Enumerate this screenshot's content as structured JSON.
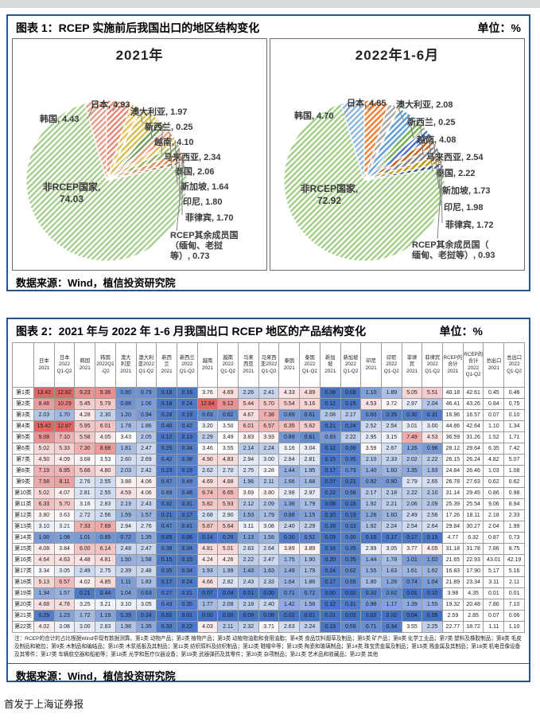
{
  "figure1": {
    "title": "图表 1：RCEP 实施前后我国出口的地区结构变化",
    "unit": "单位：%",
    "source": "数据来源：Wind，植信投资研究院"
  },
  "figure2": {
    "title": "图表 2：2021 年与 2022 年 1-6 月我国出口 RCEP 地区的产品结构变化",
    "unit": "单位：%",
    "source": "数据来源：Wind，植信投资研究院",
    "note": "注：RCEP的合计的占比根据Wind中现有数据测算。第1类 动物产品；第2类 植物产品；第3类 动植物油脂和食用油脂；第4类 食品饮料烟草及制品；第5类 矿产品；第6类 化学工业品；第7类 塑料及橡胶制品；第8类 毛皮及制品和箱包；第9类 木制品和编结品；第10类 木浆纸板及其制品；第11类 纺织原料及纺织制品；第12类 鞋帽伞等；第13类 陶瓷和玻璃制品；第14类 珠宝贵金属及制品；第15类 贱金属及其制品；第16类 机电音像设备及其零件；第17类 车辆航空器和船舶等；第18类 光学和医疗仪器设备；第19类 武器弹药及其零件；第20类 杂项制品；第21类 艺术品和收藏品；第22类 其他"
  },
  "footer": {
    "text": "首发于上海证券报"
  },
  "chart_data": [
    {
      "type": "pie",
      "title": "2021年",
      "labels": [
        "日本",
        "澳大利亚",
        "新西兰",
        "越南",
        "马来西亚",
        "泰国",
        "新加坡",
        "印尼",
        "菲律宾",
        "RCEP其余成员国（缅甸、老挝等）",
        "非RCEP国家",
        "韩国"
      ],
      "values": [
        4.93,
        1.97,
        0.25,
        4.1,
        2.34,
        2.06,
        1.64,
        1.8,
        1.7,
        0.73,
        74.03,
        4.43
      ]
    },
    {
      "type": "pie",
      "title": "2022年1-6月",
      "labels": [
        "日本",
        "澳大利亚",
        "新西兰",
        "越南",
        "马来西亚",
        "泰国",
        "新加坡",
        "印尼",
        "菲律宾",
        "RCEP其余成员国（缅甸、老挝等）",
        "非RCEP国家",
        "韩国"
      ],
      "values": [
        4.85,
        2.08,
        0.25,
        4.08,
        2.54,
        2.22,
        1.73,
        1.98,
        1.72,
        0.93,
        72.92,
        4.7
      ]
    },
    {
      "type": "table",
      "title": "2021 年与 2022 年 1-6 月我国出口 RCEP 地区的产品结构变化",
      "unit": "%",
      "columns": [
        "日本\n2021",
        "日本\n2022\nQ1-Q2",
        "韩国\n2021",
        "韩国\n2022Q1\n-Q2",
        "澳大\n利亚\n2021",
        "澳大利\n亚2022\nQ1-Q2",
        "新西\n兰\n2021",
        "新西兰\n2022\nQ1-Q2",
        "越南\n2021",
        "越南\n2022\nQ1-Q2",
        "马来\n西亚\n2021",
        "马来西\n亚2022\nQ1-Q2",
        "泰国\n2021",
        "泰国\n2022\nQ1-Q2",
        "新加\n坡\n2021",
        "新加坡\n2022\nQ1-Q2",
        "印尼\n2021",
        "印尼\n2022\nQ1-Q2",
        "菲律\n宾\n2021",
        "菲律宾\n2022\nQ1-Q2",
        "RCEP的\n合计\n2021",
        "RCEP的\n合计\n2022\nQ1-Q2",
        "总出口\n2021",
        "总出口\n2022\nQ1-Q2"
      ],
      "rows": [
        {
          "label": "第1类",
          "values": [
            13.42,
            12.82,
            9.23,
            9.36,
            0.8,
            0.79,
            0.18,
            0.16,
            3.76,
            4.69,
            2.26,
            2.41,
            4.33,
            4.89,
            0.06,
            0.08,
            1.1,
            1.89,
            5.05,
            5.51,
            40.18,
            42.61,
            0.45,
            0.46
          ]
        },
        {
          "label": "第2类",
          "values": [
            8.46,
            10.29,
            5.45,
            5.79,
            0.88,
            1.06,
            0.18,
            0.24,
            12.84,
            9.12,
            5.44,
            5.7,
            5.54,
            5.16,
            0.12,
            0.15,
            4.53,
            3.72,
            2.97,
            2.04,
            46.41,
            43.26,
            0.84,
            0.75
          ]
        },
        {
          "label": "第3类",
          "values": [
            2.03,
            1.7,
            4.28,
            2.3,
            1.2,
            0.94,
            0.28,
            0.19,
            0.63,
            0.62,
            4.67,
            7.38,
            0.89,
            0.61,
            2.08,
            2.17,
            0.6,
            0.35,
            0.3,
            0.31,
            16.96,
            16.57,
            0.07,
            0.1
          ]
        },
        {
          "label": "第4类",
          "values": [
            15.42,
            12.87,
            5.95,
            6.01,
            1.78,
            1.86,
            0.4,
            0.42,
            3.2,
            3.5,
            6.01,
            6.57,
            6.35,
            5.62,
            0.21,
            0.24,
            2.52,
            2.54,
            3.01,
            3.0,
            44.86,
            42.64,
            1.1,
            1.34
          ]
        },
        {
          "label": "第5类",
          "values": [
            9.08,
            7.1,
            5.58,
            4.05,
            3.43,
            2.05,
            0.12,
            0.13,
            2.29,
            3.49,
            3.83,
            3.93,
            0.89,
            0.61,
            0.93,
            2.22,
            2.95,
            3.15,
            7.49,
            4.53,
            36.59,
            31.26,
            1.52,
            1.71
          ]
        },
        {
          "label": "第6类",
          "values": [
            5.02,
            5.33,
            7.3,
            8.68,
            1.81,
            2.47,
            0.25,
            0.34,
            3.46,
            3.55,
            2.14,
            2.24,
            3.16,
            3.04,
            0.12,
            0.36,
            3.59,
            2.67,
            1.26,
            0.96,
            28.12,
            29.64,
            6.35,
            7.42
          ]
        },
        {
          "label": "第7类",
          "values": [
            4.5,
            4.09,
            3.68,
            3.53,
            2.6,
            2.69,
            0.42,
            0.38,
            4.9,
            4.83,
            2.94,
            3.0,
            2.84,
            2.81,
            0.15,
            0.35,
            2.1,
            2.33,
            2.02,
            2.22,
            26.15,
            26.24,
            4.82,
            5.07
          ]
        },
        {
          "label": "第8类",
          "values": [
            7.19,
            6.95,
            5.66,
            4.8,
            2.03,
            2.42,
            0.23,
            0.19,
            2.62,
            2.7,
            2.75,
            3.28,
            1.44,
            1.95,
            0.17,
            0.73,
            1.4,
            1.6,
            1.35,
            1.83,
            24.84,
            26.46,
            1.03,
            1.08
          ]
        },
        {
          "label": "第9类",
          "values": [
            7.58,
            8.11,
            2.76,
            2.55,
            3.88,
            4.06,
            0.47,
            0.49,
            4.69,
            4.88,
            1.96,
            2.11,
            1.66,
            1.68,
            0.07,
            0.21,
            0.92,
            0.9,
            2.79,
            2.65,
            26.78,
            27.63,
            0.62,
            0.62
          ]
        },
        {
          "label": "第10类",
          "values": [
            5.02,
            4.07,
            2.81,
            2.55,
            4.59,
            4.06,
            0.69,
            0.48,
            6.74,
            6.65,
            3.69,
            3.8,
            2.98,
            2.97,
            0.22,
            0.58,
            2.17,
            2.18,
            2.22,
            2.1,
            31.14,
            29.45,
            0.86,
            0.98
          ]
        },
        {
          "label": "第11类",
          "values": [
            6.33,
            5.7,
            3.16,
            2.83,
            2.19,
            2.43,
            0.32,
            0.31,
            5.82,
            5.93,
            2.12,
            2.09,
            1.38,
            1.79,
            0.08,
            0.16,
            1.92,
            2.21,
            2.06,
            2.09,
            25.39,
            25.54,
            9.06,
            8.94
          ]
        },
        {
          "label": "第12类",
          "values": [
            3.8,
            3.63,
            2.72,
            2.56,
            1.59,
            1.57,
            0.21,
            0.17,
            2.68,
            2.9,
            1.53,
            1.79,
            0.88,
            1.15,
            0.1,
            0.19,
            1.28,
            1.6,
            2.49,
            2.56,
            17.26,
            18.11,
            2.18,
            2.33
          ]
        },
        {
          "label": "第13类",
          "values": [
            3.1,
            3.21,
            7.33,
            7.69,
            2.94,
            2.76,
            0.47,
            0.41,
            5.87,
            5.64,
            3.11,
            3.08,
            2.4,
            2.29,
            0.16,
            0.33,
            1.92,
            2.24,
            2.54,
            2.64,
            29.84,
            30.27,
            2.04,
            1.99
          ]
        },
        {
          "label": "第14类",
          "values": [
            1.0,
            1.08,
            1.01,
            0.85,
            0.72,
            1.35,
            0.05,
            0.06,
            0.14,
            0.28,
            1.13,
            1.56,
            0.3,
            0.52,
            0.09,
            0.3,
            0.16,
            0.17,
            0.17,
            0.15,
            4.77,
            6.32,
            0.87,
            0.73
          ]
        },
        {
          "label": "第15类",
          "values": [
            4.08,
            3.84,
            6.0,
            6.14,
            2.48,
            2.47,
            0.38,
            0.34,
            4.81,
            5.01,
            2.63,
            2.64,
            3.89,
            3.89,
            0.16,
            0.35,
            2.99,
            3.05,
            3.77,
            4.05,
            31.18,
            31.78,
            7.86,
            8.75
          ]
        },
        {
          "label": "第16类",
          "values": [
            4.64,
            4.63,
            4.48,
            4.81,
            1.5,
            1.58,
            0.15,
            0.15,
            4.24,
            4.26,
            2.22,
            2.47,
            1.75,
            1.9,
            0.2,
            0.35,
            1.44,
            1.78,
            1.01,
            1.02,
            21.65,
            22.93,
            43.01,
            42.19
          ]
        },
        {
          "label": "第17类",
          "values": [
            3.34,
            3.05,
            2.49,
            2.75,
            2.39,
            2.48,
            0.35,
            0.34,
            1.93,
            1.99,
            1.43,
            1.63,
            1.49,
            1.79,
            0.24,
            0.62,
            1.55,
            1.63,
            1.61,
            1.62,
            16.83,
            17.9,
            5.17,
            5.16
          ]
        },
        {
          "label": "第18类",
          "values": [
            5.13,
            6.57,
            4.02,
            4.85,
            1.11,
            1.83,
            0.17,
            0.24,
            4.66,
            2.82,
            2.43,
            2.33,
            1.64,
            1.86,
            0.17,
            0.55,
            1.8,
            1.26,
            0.74,
            1.04,
            21.89,
            23.34,
            3.11,
            2.11
          ]
        },
        {
          "label": "第19类",
          "values": [
            1.34,
            1.57,
            0.21,
            0.44,
            1.04,
            0.63,
            0.27,
            0.21,
            0.07,
            0.04,
            0.01,
            0.0,
            0.71,
            0.72,
            0.0,
            0.02,
            0.32,
            0.62,
            0.01,
            0.1,
            3.98,
            4.35,
            0.01,
            0.01
          ]
        },
        {
          "label": "第20类",
          "values": [
            4.68,
            4.78,
            3.25,
            3.21,
            3.1,
            3.05,
            0.43,
            0.35,
            1.77,
            2.08,
            2.18,
            2.4,
            1.42,
            1.58,
            0.12,
            0.31,
            0.98,
            1.17,
            1.39,
            1.55,
            19.32,
            20.48,
            7.86,
            7.1
          ]
        },
        {
          "label": "第21类",
          "values": [
            0.29,
            1.23,
            1.72,
            1.19,
            0.39,
            0.24,
            0.02,
            0.01,
            0.0,
            0.0,
            0.09,
            0.08,
            0.02,
            0.01,
            0.01,
            0.02,
            0.02,
            0.02,
            0.04,
            0.05,
            2.59,
            2.85,
            0.07,
            0.06
          ]
        },
        {
          "label": "第22类",
          "values": [
            4.02,
            3.08,
            3.0,
            2.83,
            1.98,
            1.35,
            0.33,
            0.22,
            4.03,
            2.11,
            2.32,
            3.71,
            2.63,
            2.24,
            0.19,
            0.59,
            0.71,
            0.34,
            3.55,
            2.25,
            22.77,
            18.72,
            1.11,
            1.1
          ]
        }
      ]
    }
  ]
}
